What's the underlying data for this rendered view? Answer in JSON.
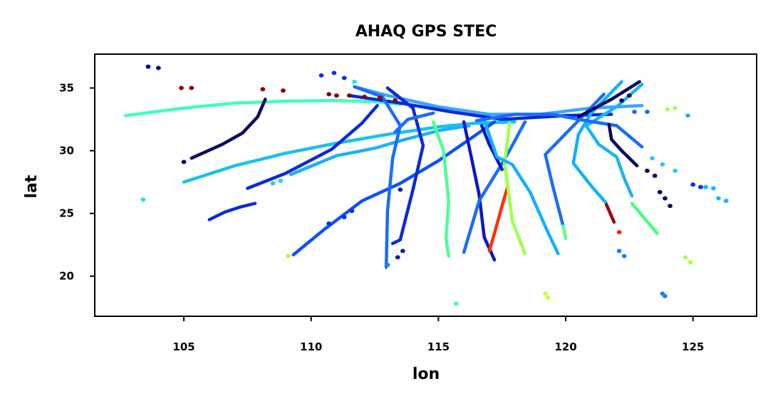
{
  "chart_data": {
    "type": "scatter",
    "title": "AHAQ GPS STEC",
    "xlabel": "lon",
    "ylabel": "lat",
    "xlim": [
      101.5,
      127.5
    ],
    "ylim": [
      16.8,
      37.7
    ],
    "xticks": [
      105,
      110,
      115,
      120,
      125
    ],
    "yticks": [
      20,
      25,
      30,
      35
    ],
    "grid": false,
    "legend": "none",
    "colormap": "jet",
    "series": [
      {
        "color": "#40ffb7",
        "points": [
          [
            102.7,
            32.8
          ],
          [
            105,
            33.4
          ],
          [
            107,
            33.8
          ],
          [
            109,
            33.95
          ],
          [
            111,
            34.0
          ],
          [
            112.5,
            33.9
          ],
          [
            113.5,
            33.7
          ]
        ]
      },
      {
        "color": "#080866",
        "points": [
          [
            105.3,
            29.4
          ],
          [
            106.5,
            30.5
          ],
          [
            107.3,
            31.4
          ],
          [
            107.9,
            32.7
          ],
          [
            108.2,
            34.1
          ]
        ]
      },
      {
        "color": "#0a2cd8",
        "points": [
          [
            106.0,
            24.5
          ],
          [
            106.6,
            25.1
          ],
          [
            107.2,
            25.5
          ],
          [
            107.8,
            25.8
          ]
        ]
      },
      {
        "color": "#1ac0f0",
        "points": [
          [
            105.0,
            27.5
          ],
          [
            107,
            28.8
          ],
          [
            109,
            29.8
          ],
          [
            111,
            30.6
          ],
          [
            113,
            31.3
          ],
          [
            115,
            31.9
          ],
          [
            116.5,
            32.2
          ],
          [
            118,
            32.3
          ]
        ]
      },
      {
        "color": "#0a2ad8",
        "points": [
          [
            107.5,
            27.0
          ],
          [
            109,
            28.2
          ],
          [
            110.8,
            30.1
          ],
          [
            112,
            32.2
          ],
          [
            112.6,
            33.6
          ]
        ]
      },
      {
        "color": "#1fb0f5",
        "points": [
          [
            109.2,
            28.1
          ],
          [
            111,
            29.6
          ],
          [
            112.5,
            30.2
          ],
          [
            113.7,
            30.9
          ],
          [
            115,
            31.6
          ],
          [
            116.2,
            32.0
          ]
        ]
      },
      {
        "color": "#0d50ff",
        "points": [
          [
            109.3,
            21.7
          ],
          [
            110.5,
            23.7
          ],
          [
            112,
            26.0
          ],
          [
            113.5,
            27.4
          ],
          [
            115,
            29.2
          ],
          [
            116.5,
            31.3
          ],
          [
            117.2,
            32.3
          ]
        ]
      },
      {
        "color": "#3aa6ff",
        "points": [
          [
            111.7,
            35.1
          ],
          [
            113,
            34.4
          ],
          [
            115,
            33.5
          ],
          [
            117,
            32.9
          ],
          [
            119,
            32.9
          ],
          [
            121,
            33.4
          ],
          [
            123,
            33.6
          ]
        ]
      },
      {
        "color": "#0a2ad8",
        "points": [
          [
            111.5,
            34.4
          ],
          [
            113.5,
            33.8
          ],
          [
            115.5,
            33.1
          ],
          [
            117.5,
            32.5
          ],
          [
            120,
            32.8
          ],
          [
            121.8,
            32.9
          ]
        ]
      },
      {
        "color": "#1a6cff",
        "points": [
          [
            111.7,
            35.1
          ],
          [
            112.8,
            34.3
          ],
          [
            113.5,
            32.0
          ],
          [
            113.2,
            29.4
          ],
          [
            113.0,
            25.2
          ],
          [
            112.95,
            20.7
          ]
        ]
      },
      {
        "color": "#0a2ad8",
        "points": [
          [
            113.0,
            35.0
          ],
          [
            114.0,
            33.4
          ],
          [
            114.4,
            30.4
          ],
          [
            114.0,
            26.9
          ],
          [
            113.5,
            22.9
          ],
          [
            113.2,
            22.6
          ]
        ]
      },
      {
        "color": "#4cff96",
        "points": [
          [
            114.8,
            32.3
          ],
          [
            115.2,
            30.0
          ],
          [
            115.4,
            26.0
          ],
          [
            115.3,
            23.0
          ],
          [
            115.4,
            21.6
          ]
        ]
      },
      {
        "color": "#0b18c8",
        "points": [
          [
            116.0,
            32.3
          ],
          [
            116.3,
            29.4
          ],
          [
            116.6,
            26.5
          ],
          [
            116.8,
            23.1
          ],
          [
            117.2,
            21.3
          ]
        ]
      },
      {
        "color": "#1a6cff",
        "points": [
          [
            118.4,
            32.3
          ],
          [
            117.6,
            29.3
          ],
          [
            116.6,
            26.0
          ],
          [
            116.0,
            21.9
          ]
        ]
      },
      {
        "color": "#ff3000",
        "points": [
          [
            117.7,
            27.0
          ],
          [
            117.5,
            25.6
          ],
          [
            117.2,
            23.4
          ],
          [
            117.0,
            22.0
          ]
        ]
      },
      {
        "color": "#0b18c8",
        "points": [
          [
            116.7,
            32.0
          ],
          [
            117.0,
            30.5
          ],
          [
            117.5,
            28.5
          ]
        ]
      },
      {
        "color": "#a0ff50",
        "points": [
          [
            117.8,
            32.2
          ],
          [
            117.6,
            29.0
          ],
          [
            117.9,
            24.4
          ],
          [
            118.4,
            21.8
          ]
        ]
      },
      {
        "color": "#12b0ff",
        "points": [
          [
            116.8,
            32.4
          ],
          [
            117.3,
            29.5
          ],
          [
            117.9,
            28.9
          ],
          [
            118.6,
            26.7
          ],
          [
            119.3,
            23.5
          ],
          [
            119.7,
            21.8
          ]
        ]
      },
      {
        "color": "#1a6cff",
        "points": [
          [
            121.5,
            34.5
          ],
          [
            120.5,
            32.4
          ],
          [
            119.2,
            29.7
          ],
          [
            119.5,
            27.1
          ],
          [
            119.9,
            24.0
          ]
        ]
      },
      {
        "color": "#5cff8c",
        "points": [
          [
            119.9,
            24.0
          ],
          [
            120.0,
            23.0
          ]
        ]
      },
      {
        "color": "#12b0ff",
        "points": [
          [
            122.2,
            35.5
          ],
          [
            121.0,
            33.0
          ],
          [
            120.5,
            31.3
          ],
          [
            120.3,
            29.0
          ],
          [
            121.0,
            27.2
          ],
          [
            121.6,
            25.8
          ]
        ]
      },
      {
        "color": "#a00000",
        "points": [
          [
            121.6,
            25.7
          ],
          [
            121.9,
            24.3
          ]
        ]
      },
      {
        "color": "#1ab4f0",
        "points": [
          [
            123.0,
            35.3
          ],
          [
            122.0,
            33.5
          ],
          [
            120.8,
            32.0
          ],
          [
            121.3,
            30.5
          ],
          [
            122.0,
            29.5
          ],
          [
            122.3,
            27.8
          ],
          [
            122.6,
            26.4
          ]
        ]
      },
      {
        "color": "#46ff80",
        "points": [
          [
            122.6,
            25.8
          ],
          [
            123.6,
            23.4
          ]
        ]
      },
      {
        "color": "#1a6cff",
        "points": [
          [
            116.5,
            32.4
          ],
          [
            118,
            32.9
          ],
          [
            119.5,
            32.9
          ],
          [
            120.5,
            32.5
          ],
          [
            122.0,
            32.0
          ],
          [
            123.0,
            30.3
          ]
        ]
      },
      {
        "color": "#080866",
        "points": [
          [
            121.7,
            32.1
          ],
          [
            121.8,
            30.9
          ],
          [
            122.2,
            30.0
          ],
          [
            122.8,
            28.8
          ]
        ]
      },
      {
        "color": "#080866",
        "points": [
          [
            120.5,
            32.7
          ],
          [
            121.8,
            34.1
          ],
          [
            122.9,
            35.5
          ]
        ]
      },
      {
        "color": "#1a6cff",
        "points": [
          [
            114.8,
            33.0
          ],
          [
            113.8,
            32.5
          ],
          [
            113.3,
            31.5
          ]
        ]
      }
    ],
    "scatter_points": [
      {
        "color": "#0a0a8a",
        "points": [
          [
            103.6,
            36.7
          ],
          [
            104.0,
            36.6
          ]
        ]
      },
      {
        "color": "#8b0000",
        "points": [
          [
            104.9,
            35.0
          ],
          [
            105.3,
            35.0
          ]
        ]
      },
      {
        "color": "#8b0000",
        "points": [
          [
            108.1,
            34.9
          ],
          [
            108.9,
            34.8
          ]
        ]
      },
      {
        "color": "#8b0000",
        "points": [
          [
            110.7,
            34.5
          ],
          [
            111.0,
            34.4
          ],
          [
            111.5,
            34.4
          ],
          [
            112.1,
            34.3
          ],
          [
            112.7,
            34.2
          ],
          [
            113.3,
            34.0
          ]
        ]
      },
      {
        "color": "#0d2ee8",
        "points": [
          [
            110.4,
            36.0
          ],
          [
            110.9,
            36.2
          ],
          [
            111.3,
            35.8
          ]
        ]
      },
      {
        "color": "#1ee8d0",
        "points": [
          [
            103.4,
            26.1
          ],
          [
            111.7,
            35.5
          ]
        ]
      },
      {
        "color": "#080866",
        "points": [
          [
            105.0,
            29.1
          ],
          [
            123.7,
            26.7
          ],
          [
            123.9,
            26.2
          ],
          [
            124.1,
            25.6
          ]
        ]
      },
      {
        "color": "#0c1eb0",
        "points": [
          [
            113.4,
            21.5
          ],
          [
            113.6,
            22.0
          ],
          [
            113.5,
            26.9
          ]
        ]
      },
      {
        "color": "#1a80ff",
        "points": [
          [
            113.0,
            20.9
          ],
          [
            122.1,
            22.0
          ],
          [
            122.3,
            21.6
          ],
          [
            123.8,
            18.6
          ],
          [
            123.9,
            18.4
          ]
        ]
      },
      {
        "color": "#a8ff48",
        "points": [
          [
            109.1,
            21.6
          ],
          [
            124.0,
            33.3
          ],
          [
            124.3,
            33.4
          ],
          [
            124.7,
            21.5
          ],
          [
            124.9,
            21.1
          ]
        ]
      },
      {
        "color": "#c8ff30",
        "points": [
          [
            119.2,
            18.6
          ],
          [
            119.3,
            18.3
          ]
        ]
      },
      {
        "color": "#40ffb0",
        "points": [
          [
            115.7,
            17.8
          ]
        ]
      },
      {
        "color": "#ff2000",
        "points": [
          [
            122.1,
            23.5
          ]
        ]
      },
      {
        "color": "#1ab4ff",
        "points": [
          [
            124.8,
            32.8
          ],
          [
            125.5,
            27.1
          ],
          [
            125.8,
            27.0
          ],
          [
            126.0,
            26.2
          ],
          [
            126.3,
            26.0
          ]
        ]
      },
      {
        "color": "#1a6cff",
        "points": [
          [
            122.7,
            33.1
          ],
          [
            123.2,
            33.1
          ]
        ]
      },
      {
        "color": "#080866",
        "points": [
          [
            122.5,
            34.4
          ],
          [
            122.2,
            34.0
          ],
          [
            123.2,
            28.4
          ],
          [
            123.5,
            28.0
          ]
        ]
      },
      {
        "color": "#2ecaf0",
        "points": [
          [
            123.4,
            29.4
          ],
          [
            123.8,
            28.9
          ],
          [
            124.3,
            28.4
          ],
          [
            108.5,
            27.4
          ],
          [
            108.8,
            27.6
          ]
        ]
      },
      {
        "color": "#0d2ee8",
        "points": [
          [
            125.0,
            27.3
          ],
          [
            125.3,
            27.1
          ],
          [
            111.3,
            24.7
          ],
          [
            111.6,
            25.2
          ],
          [
            110.7,
            24.2
          ]
        ]
      }
    ]
  }
}
